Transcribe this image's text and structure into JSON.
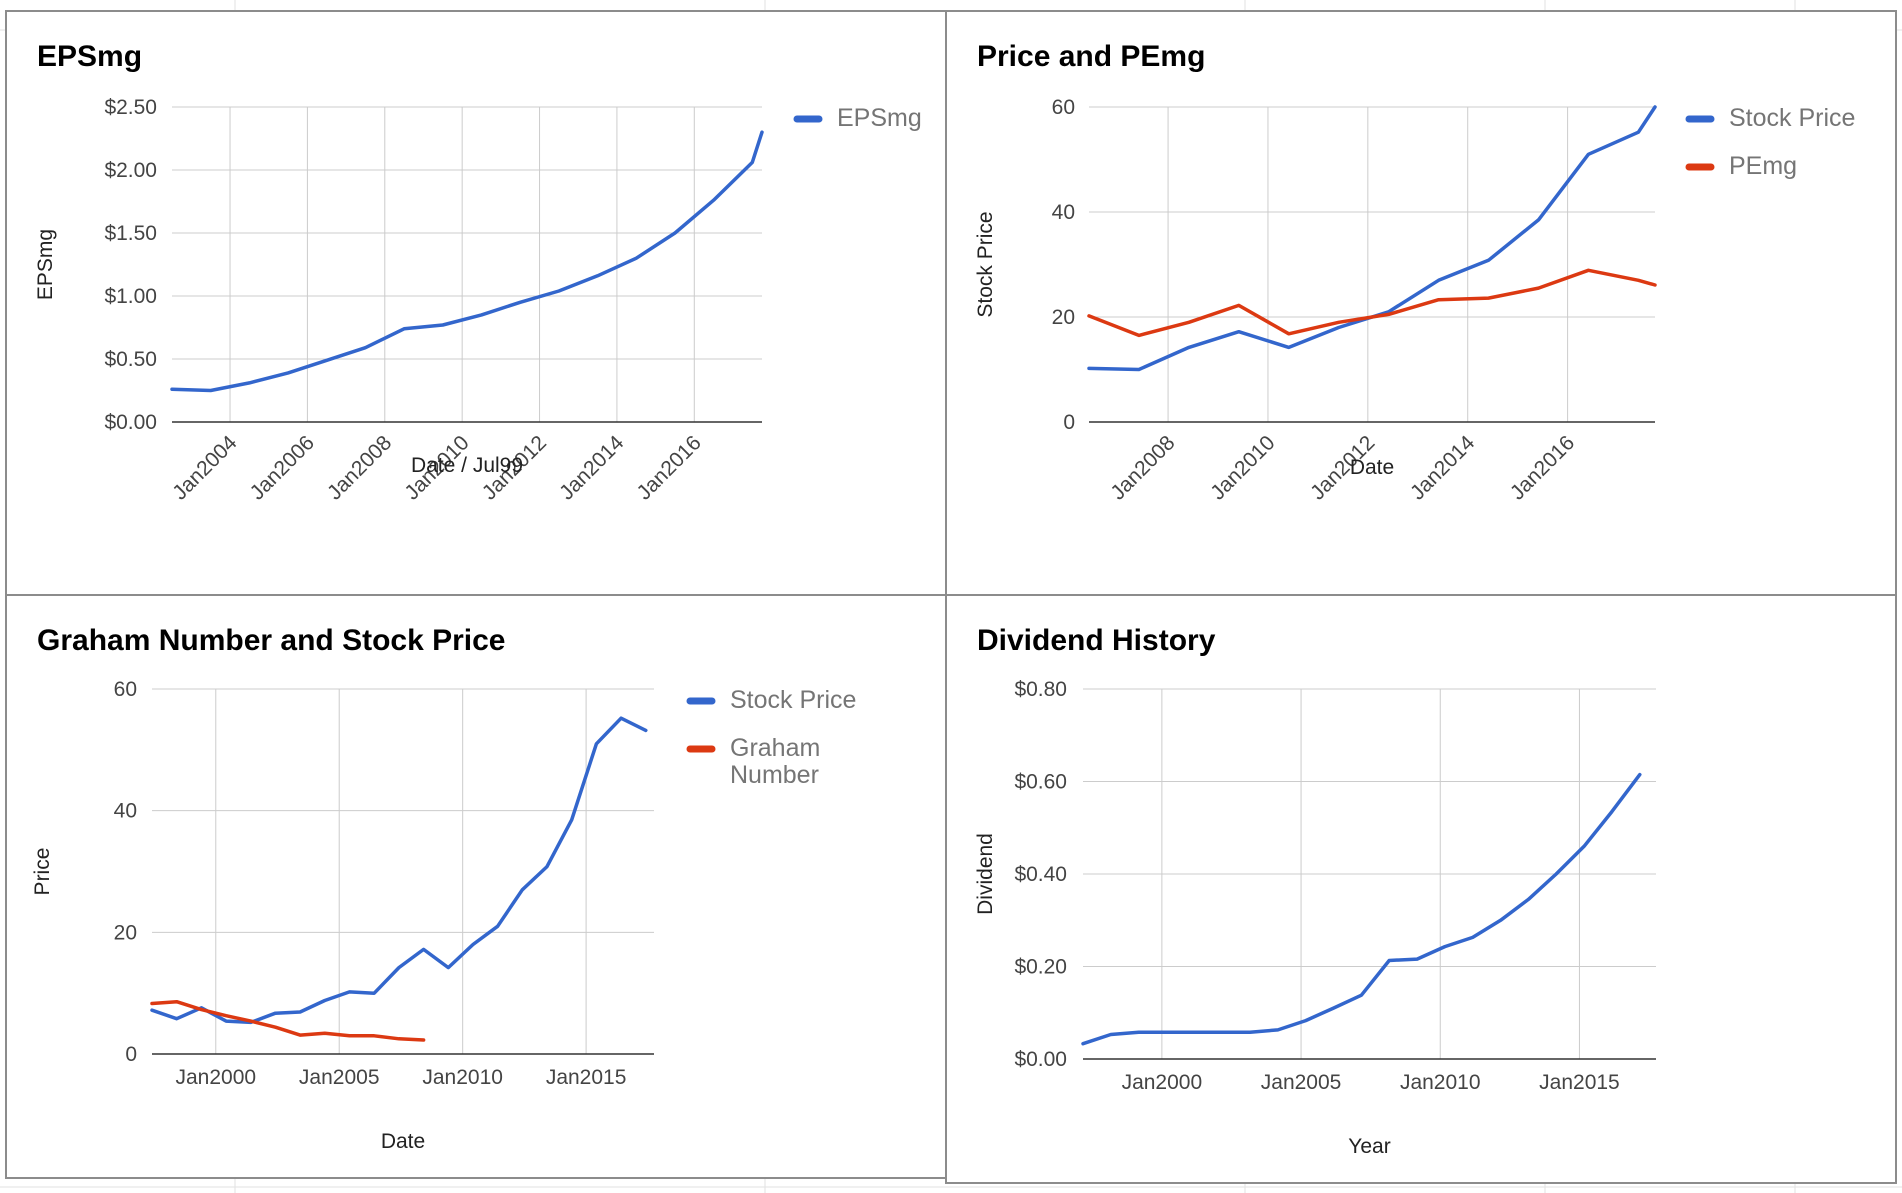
{
  "charts": [
    {
      "title": "EPSmg",
      "type": "line",
      "xlabel": "Date / Jul99",
      "ylabel": "EPSmg",
      "y_ticks": [
        "$0.00",
        "$0.50",
        "$1.00",
        "$1.50",
        "$2.00",
        "$2.50"
      ],
      "x_ticks": [
        "Jan2004",
        "Jan2006",
        "Jan2008",
        "Jan2010",
        "Jan2012",
        "Jan2014",
        "Jan2016"
      ],
      "legend": [
        "EPSmg"
      ]
    },
    {
      "title": "Price and PEmg",
      "type": "line",
      "xlabel": "Date",
      "ylabel": "Stock Price",
      "y_ticks": [
        "0",
        "20",
        "40",
        "60"
      ],
      "x_ticks": [
        "Jan2008",
        "Jan2010",
        "Jan2012",
        "Jan2014",
        "Jan2016"
      ],
      "legend": [
        "Stock Price",
        "PEmg"
      ]
    },
    {
      "title": "Graham Number and Stock Price",
      "type": "line",
      "xlabel": "Date",
      "ylabel": "Price",
      "y_ticks": [
        "0",
        "20",
        "40",
        "60"
      ],
      "x_ticks": [
        "Jan2000",
        "Jan2005",
        "Jan2010",
        "Jan2015"
      ],
      "legend": [
        "Stock Price",
        "Graham Number"
      ]
    },
    {
      "title": "Dividend History",
      "type": "line",
      "xlabel": "Year",
      "ylabel": "Dividend",
      "y_ticks": [
        "$0.00",
        "$0.20",
        "$0.40",
        "$0.60",
        "$0.80"
      ],
      "x_ticks": [
        "Jan2000",
        "Jan2005",
        "Jan2010",
        "Jan2015"
      ],
      "legend": []
    }
  ],
  "colors": {
    "blue": "#3366cc",
    "red": "#dc3912",
    "grid": "#cccccc",
    "axis": "#333333",
    "tick_text": "#444444"
  },
  "chart_data": [
    {
      "type": "line",
      "title": "EPSmg",
      "xlabel": "Date / Jul99",
      "ylabel": "EPSmg",
      "xlim": [
        "2002-07-01",
        "2017-10-01"
      ],
      "ylim": [
        0,
        2.5
      ],
      "grid": true,
      "legend_position": "right",
      "series": [
        {
          "name": "EPSmg",
          "color": "#3366cc",
          "points": [
            [
              "2002-07-01",
              0.26
            ],
            [
              "2003-07-01",
              0.25
            ],
            [
              "2004-07-01",
              0.31
            ],
            [
              "2005-07-01",
              0.39
            ],
            [
              "2006-07-01",
              0.49
            ],
            [
              "2007-07-01",
              0.59
            ],
            [
              "2008-07-01",
              0.74
            ],
            [
              "2009-07-01",
              0.77
            ],
            [
              "2010-07-01",
              0.85
            ],
            [
              "2011-07-01",
              0.95
            ],
            [
              "2012-07-01",
              1.04
            ],
            [
              "2013-07-01",
              1.16
            ],
            [
              "2014-07-01",
              1.3
            ],
            [
              "2015-07-01",
              1.5
            ],
            [
              "2016-07-01",
              1.76
            ],
            [
              "2017-07-01",
              2.06
            ],
            [
              "2017-10-01",
              2.3
            ]
          ]
        }
      ]
    },
    {
      "type": "line",
      "title": "Price and PEmg",
      "xlabel": "Date",
      "ylabel": "Stock Price",
      "xlim": [
        "2006-06-01",
        "2017-10-01"
      ],
      "ylim": [
        0,
        60
      ],
      "grid": true,
      "legend_position": "right",
      "series": [
        {
          "name": "Stock Price",
          "color": "#3366cc",
          "points": [
            [
              "2006-06-01",
              10.2
            ],
            [
              "2007-06-01",
              10.0
            ],
            [
              "2008-06-01",
              14.2
            ],
            [
              "2009-06-01",
              17.2
            ],
            [
              "2010-06-01",
              14.2
            ],
            [
              "2011-06-01",
              18.0
            ],
            [
              "2012-06-01",
              21.0
            ],
            [
              "2013-06-01",
              27.0
            ],
            [
              "2014-06-01",
              30.8
            ],
            [
              "2015-06-01",
              38.5
            ],
            [
              "2016-06-01",
              51.0
            ],
            [
              "2017-06-01",
              55.2
            ],
            [
              "2017-10-01",
              60.0
            ]
          ]
        },
        {
          "name": "PEmg",
          "color": "#dc3912",
          "points": [
            [
              "2006-06-01",
              20.2
            ],
            [
              "2007-06-01",
              16.5
            ],
            [
              "2008-06-01",
              19.0
            ],
            [
              "2009-06-01",
              22.2
            ],
            [
              "2010-06-01",
              16.8
            ],
            [
              "2011-06-01",
              19.0
            ],
            [
              "2012-06-01",
              20.5
            ],
            [
              "2013-06-01",
              23.3
            ],
            [
              "2014-06-01",
              23.6
            ],
            [
              "2015-06-01",
              25.5
            ],
            [
              "2016-06-01",
              28.9
            ],
            [
              "2017-06-01",
              27.0
            ],
            [
              "2017-10-01",
              26.1
            ]
          ]
        }
      ]
    },
    {
      "type": "line",
      "title": "Graham Number and Stock Price",
      "xlabel": "Date",
      "ylabel": "Price",
      "xlim": [
        "1997-06-01",
        "2017-10-01"
      ],
      "ylim": [
        0,
        60
      ],
      "grid": true,
      "legend_position": "right",
      "series": [
        {
          "name": "Stock Price",
          "color": "#3366cc",
          "points": [
            [
              "1997-06-01",
              7.2
            ],
            [
              "1998-06-01",
              5.8
            ],
            [
              "1999-06-01",
              7.6
            ],
            [
              "2000-06-01",
              5.4
            ],
            [
              "2001-06-01",
              5.2
            ],
            [
              "2002-06-01",
              6.7
            ],
            [
              "2003-06-01",
              6.9
            ],
            [
              "2004-06-01",
              8.8
            ],
            [
              "2005-06-01",
              10.2
            ],
            [
              "2006-06-01",
              10.0
            ],
            [
              "2007-06-01",
              14.2
            ],
            [
              "2008-06-01",
              17.2
            ],
            [
              "2009-06-01",
              14.2
            ],
            [
              "2010-06-01",
              18.0
            ],
            [
              "2011-06-01",
              21.0
            ],
            [
              "2012-06-01",
              27.0
            ],
            [
              "2013-06-01",
              30.8
            ],
            [
              "2014-06-01",
              38.5
            ],
            [
              "2015-06-01",
              51.0
            ],
            [
              "2016-06-01",
              55.2
            ],
            [
              "2017-06-01",
              53.2
            ]
          ]
        },
        {
          "name": "Graham Number",
          "color": "#dc3912",
          "points": [
            [
              "1997-06-01",
              8.3
            ],
            [
              "1998-06-01",
              8.6
            ],
            [
              "1999-06-01",
              7.3
            ],
            [
              "2000-06-01",
              6.3
            ],
            [
              "2001-06-01",
              5.4
            ],
            [
              "2002-06-01",
              4.4
            ],
            [
              "2003-06-01",
              3.1
            ],
            [
              "2004-06-01",
              3.4
            ],
            [
              "2005-06-01",
              3.0
            ],
            [
              "2006-06-01",
              3.0
            ],
            [
              "2007-06-01",
              2.5
            ],
            [
              "2008-06-01",
              2.3
            ]
          ]
        }
      ]
    },
    {
      "type": "line",
      "title": "Dividend History",
      "xlabel": "Year",
      "ylabel": "Dividend",
      "xlim": [
        "1997-03-01",
        "2017-10-01"
      ],
      "ylim": [
        0,
        0.8
      ],
      "grid": true,
      "series": [
        {
          "color": "#3366cc",
          "points": [
            [
              "1997-03-01",
              0.033
            ],
            [
              "1998-03-01",
              0.053
            ],
            [
              "1999-03-01",
              0.058
            ],
            [
              "2000-03-01",
              0.058
            ],
            [
              "2001-03-01",
              0.058
            ],
            [
              "2002-03-01",
              0.058
            ],
            [
              "2003-03-01",
              0.058
            ],
            [
              "2004-03-01",
              0.063
            ],
            [
              "2005-03-01",
              0.083
            ],
            [
              "2006-03-01",
              0.11
            ],
            [
              "2007-03-01",
              0.138
            ],
            [
              "2008-03-01",
              0.213
            ],
            [
              "2009-03-01",
              0.216
            ],
            [
              "2010-03-01",
              0.243
            ],
            [
              "2011-03-01",
              0.263
            ],
            [
              "2012-03-01",
              0.3
            ],
            [
              "2013-03-01",
              0.345
            ],
            [
              "2014-03-01",
              0.4
            ],
            [
              "2015-03-01",
              0.46
            ],
            [
              "2016-03-01",
              0.535
            ],
            [
              "2017-03-01",
              0.615
            ]
          ]
        }
      ]
    }
  ]
}
